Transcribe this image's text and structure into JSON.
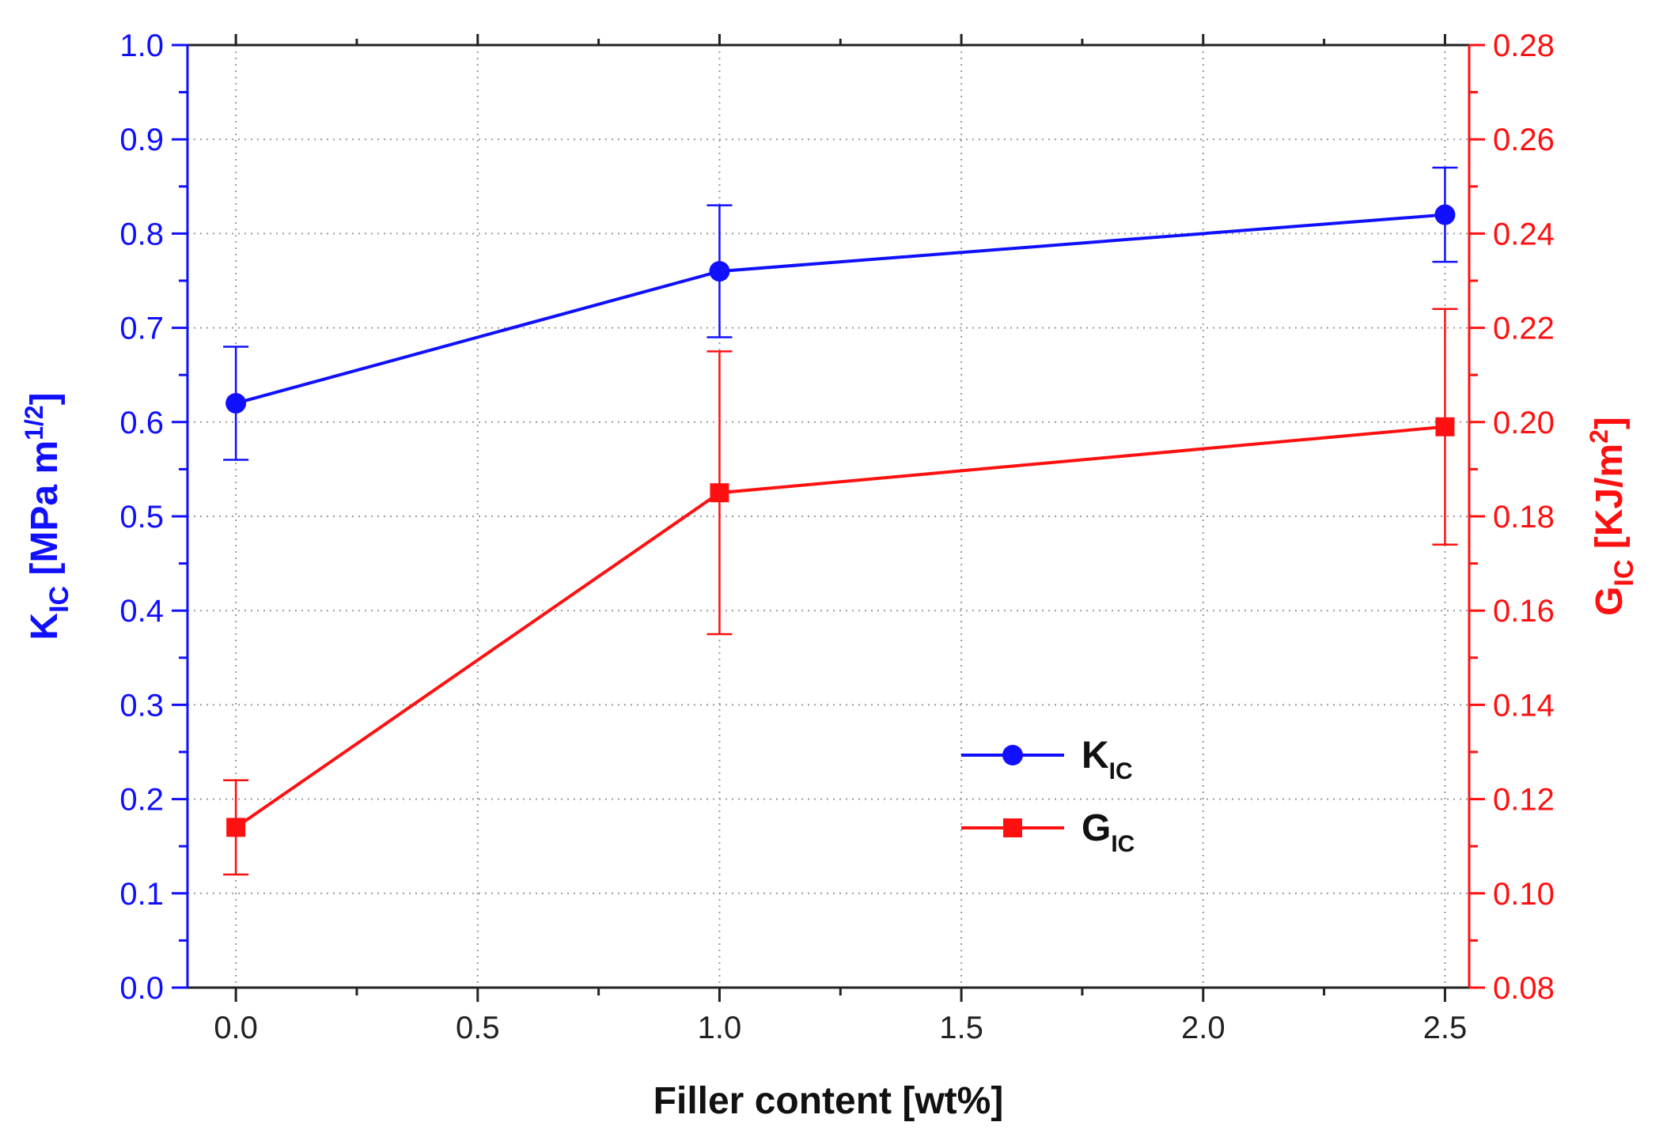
{
  "chart_data": {
    "type": "line",
    "xlabel": "Filler content [wt%]",
    "y_left_label": {
      "main": "K",
      "sub": "IC",
      "rest": " [MPa m",
      "sup": "1/2",
      "end": "]"
    },
    "y_right_label": {
      "main": "G",
      "sub": "IC",
      "rest": " [KJ/m",
      "sup": "2",
      "end": "]"
    },
    "x_ticks": [
      "0.0",
      "0.5",
      "1.0",
      "1.5",
      "2.0",
      "2.5"
    ],
    "y_left_ticks": [
      "0.0",
      "0.1",
      "0.2",
      "0.3",
      "0.4",
      "0.5",
      "0.6",
      "0.7",
      "0.8",
      "0.9",
      "1.0"
    ],
    "y_right_ticks": [
      "0.08",
      "0.10",
      "0.12",
      "0.14",
      "0.16",
      "0.18",
      "0.20",
      "0.22",
      "0.24",
      "0.26",
      "0.28"
    ],
    "xlim": [
      -0.1,
      2.55
    ],
    "ylim_left": [
      0.0,
      1.0
    ],
    "ylim_right": [
      0.08,
      0.28
    ],
    "grid": true,
    "legend_position": "lower-right",
    "series": [
      {
        "name": "K",
        "name_sub": "IC",
        "axis": "left",
        "marker": "circle",
        "color": "#1010ff",
        "x": [
          0.0,
          1.0,
          2.5
        ],
        "y": [
          0.62,
          0.76,
          0.82
        ],
        "y_err_low": [
          0.56,
          0.69,
          0.77
        ],
        "y_err_high": [
          0.68,
          0.83,
          0.87
        ]
      },
      {
        "name": "G",
        "name_sub": "IC",
        "axis": "right",
        "marker": "square",
        "color": "#ff1010",
        "x": [
          0.0,
          1.0,
          2.5
        ],
        "y": [
          0.114,
          0.185,
          0.199
        ],
        "y_err_low": [
          0.104,
          0.155,
          0.174
        ],
        "y_err_high": [
          0.124,
          0.215,
          0.224
        ]
      }
    ]
  }
}
